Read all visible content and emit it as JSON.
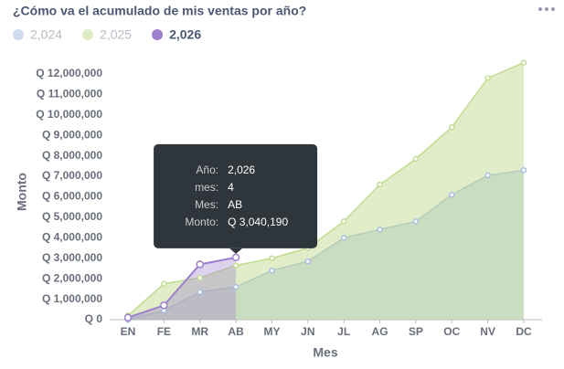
{
  "chart_data": {
    "type": "area",
    "title": "¿Cómo va el acumulado de mis ventas por año?",
    "xlabel": "Mes",
    "ylabel": "Monto",
    "categories": [
      "EN",
      "FE",
      "MR",
      "AB",
      "MY",
      "JN",
      "JL",
      "AG",
      "SP",
      "OC",
      "NV",
      "DC"
    ],
    "series": [
      {
        "name": "2,024",
        "color": "#a9bde4",
        "values": [
          0,
          450000,
          1350000,
          1600000,
          2400000,
          2850000,
          4000000,
          4400000,
          4800000,
          6100000,
          7050000,
          7300000
        ]
      },
      {
        "name": "2,025",
        "color": "#c2dc92",
        "values": [
          200000,
          1750000,
          2050000,
          2650000,
          3000000,
          3500000,
          4800000,
          6600000,
          7850000,
          9400000,
          11800000,
          12550000
        ]
      },
      {
        "name": "2,026",
        "color": "#9d7fcc",
        "values": [
          100000,
          700000,
          2700000,
          3040190,
          null,
          null,
          null,
          null,
          null,
          null,
          null,
          null
        ]
      }
    ],
    "highlight": "2,026",
    "ylim": [
      0,
      12600000
    ],
    "yticks": [
      {
        "value": 0,
        "label": "Q 0"
      },
      {
        "value": 1000000,
        "label": "Q 1,000,000"
      },
      {
        "value": 2000000,
        "label": "Q 2,000,000"
      },
      {
        "value": 3000000,
        "label": "Q 3,000,000"
      },
      {
        "value": 4000000,
        "label": "Q 4,000,000"
      },
      {
        "value": 5000000,
        "label": "Q 5,000,000"
      },
      {
        "value": 6000000,
        "label": "Q 6,000,000"
      },
      {
        "value": 7000000,
        "label": "Q 7,000,000"
      },
      {
        "value": 8000000,
        "label": "Q 8,000,000"
      },
      {
        "value": 9000000,
        "label": "Q 9,000,000"
      },
      {
        "value": 10000000,
        "label": "Q 10,000,000"
      },
      {
        "value": 11000000,
        "label": "Q 11,000,000"
      },
      {
        "value": 12000000,
        "label": "Q 12,000,000"
      }
    ],
    "tooltip": [
      {
        "label": "Año:",
        "value": "2,026"
      },
      {
        "label": "mes:",
        "value": "4"
      },
      {
        "label": "Mes:",
        "value": "AB"
      },
      {
        "label": "Monto:",
        "value": "Q 3,040,190"
      }
    ]
  }
}
